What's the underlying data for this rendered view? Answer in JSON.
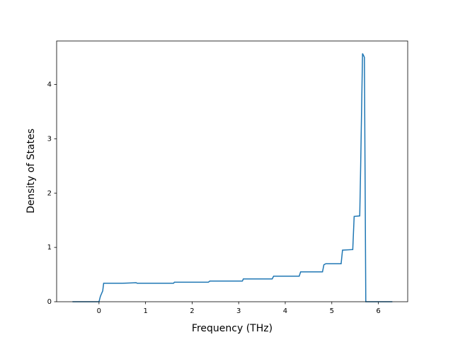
{
  "chart_data": {
    "type": "line",
    "xlabel": "Frequency (THz)",
    "ylabel": "Density of States",
    "x": [
      -0.57,
      0,
      0.03,
      0.08,
      0.1,
      0.5,
      0.8,
      0.82,
      1.6,
      1.62,
      2.35,
      2.38,
      3.08,
      3.1,
      3.72,
      3.75,
      4.3,
      4.33,
      4.8,
      4.83,
      4.87,
      5.2,
      5.23,
      5.45,
      5.48,
      5.6,
      5.62,
      5.66,
      5.7,
      5.73,
      6.3
    ],
    "series": [
      {
        "color": "#1f77b4",
        "values": [
          0,
          0,
          0.1,
          0.2,
          0.34,
          0.34,
          0.35,
          0.34,
          0.34,
          0.36,
          0.36,
          0.38,
          0.38,
          0.42,
          0.42,
          0.47,
          0.47,
          0.55,
          0.55,
          0.68,
          0.7,
          0.7,
          0.95,
          0.96,
          1.57,
          1.58,
          2.5,
          4.57,
          4.5,
          0,
          0
        ]
      }
    ],
    "xlim": [
      -0.91,
      6.63
    ],
    "ylim": [
      0,
      4.8
    ],
    "xticks": [
      0,
      1,
      2,
      3,
      4,
      5,
      6
    ],
    "yticks": [
      0,
      1,
      2,
      3,
      4
    ]
  }
}
